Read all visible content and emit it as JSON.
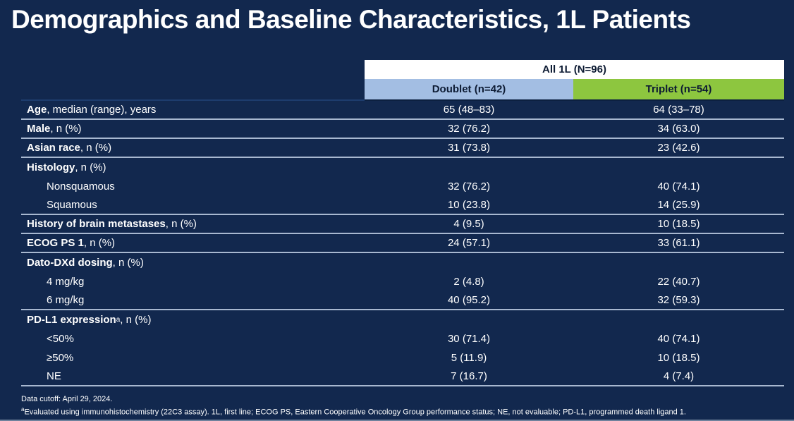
{
  "slide": {
    "title": "Demographics and Baseline Characteristics, 1L Patients"
  },
  "table": {
    "span_header": "All 1L (N=96)",
    "columns": [
      {
        "label": "Doublet (n=42)"
      },
      {
        "label": "Triplet (n=54)"
      }
    ],
    "rows": [
      {
        "bold": "Age",
        "rest": ", median (range), years",
        "doublet": "65 (48–83)",
        "triplet": "64 (33–78)",
        "indent": false,
        "sep": true
      },
      {
        "bold": "Male",
        "rest": ", n (%)",
        "doublet": "32 (76.2)",
        "triplet": "34 (63.0)",
        "indent": false,
        "sep": true
      },
      {
        "bold": "Asian race",
        "rest": ", n (%)",
        "doublet": "31 (73.8)",
        "triplet": "23 (42.6)",
        "indent": false,
        "sep": true
      },
      {
        "bold": "Histology",
        "rest": ", n (%)",
        "doublet": "",
        "triplet": "",
        "indent": false,
        "sep": false
      },
      {
        "bold": "",
        "rest": "Nonsquamous",
        "doublet": "32 (76.2)",
        "triplet": "40 (74.1)",
        "indent": true,
        "sep": false
      },
      {
        "bold": "",
        "rest": "Squamous",
        "doublet": "10 (23.8)",
        "triplet": "14 (25.9)",
        "indent": true,
        "sep": true
      },
      {
        "bold": "History of brain metastases",
        "rest": ", n (%)",
        "doublet": "4 (9.5)",
        "triplet": "10 (18.5)",
        "indent": false,
        "sep": true
      },
      {
        "bold": "ECOG PS 1",
        "rest": ", n (%)",
        "doublet": "24 (57.1)",
        "triplet": "33 (61.1)",
        "indent": false,
        "sep": true
      },
      {
        "bold": "Dato-DXd dosing",
        "rest": ", n (%)",
        "doublet": "",
        "triplet": "",
        "indent": false,
        "sep": false
      },
      {
        "bold": "",
        "rest": "4 mg/kg",
        "doublet": "2 (4.8)",
        "triplet": "22 (40.7)",
        "indent": true,
        "sep": false
      },
      {
        "bold": "",
        "rest": "6 mg/kg",
        "doublet": "40 (95.2)",
        "triplet": "32 (59.3)",
        "indent": true,
        "sep": true
      },
      {
        "bold": "PD-L1 expression",
        "sup": "a",
        "rest": ", n (%)",
        "doublet": "",
        "triplet": "",
        "indent": false,
        "sep": false
      },
      {
        "bold": "",
        "rest": "<50%",
        "doublet": "30 (71.4)",
        "triplet": "40 (74.1)",
        "indent": true,
        "sep": false
      },
      {
        "bold": "",
        "rest": "≥50%",
        "doublet": "5 (11.9)",
        "triplet": "10 (18.5)",
        "indent": true,
        "sep": false
      },
      {
        "bold": "",
        "rest": "NE",
        "doublet": "7 (16.7)",
        "triplet": "4 (7.4)",
        "indent": true,
        "sep": true
      }
    ]
  },
  "footer": {
    "line1": "Data cutoff: April 29, 2024.",
    "footnote_sup": "a",
    "footnote_text": "Evaluated using immunohistochemistry (22C3 assay). 1L, first line; ECOG PS, Eastern Cooperative Oncology Group performance status; NE, not evaluable; PD-L1, programmed death ligand 1."
  },
  "colors": {
    "background": "#12284e",
    "doublet_header": "#a3bee3",
    "triplet_header": "#8dc63f",
    "separator": "#a8b8d0",
    "title_text": "#ffffff",
    "header_text": "#0d1b33"
  }
}
